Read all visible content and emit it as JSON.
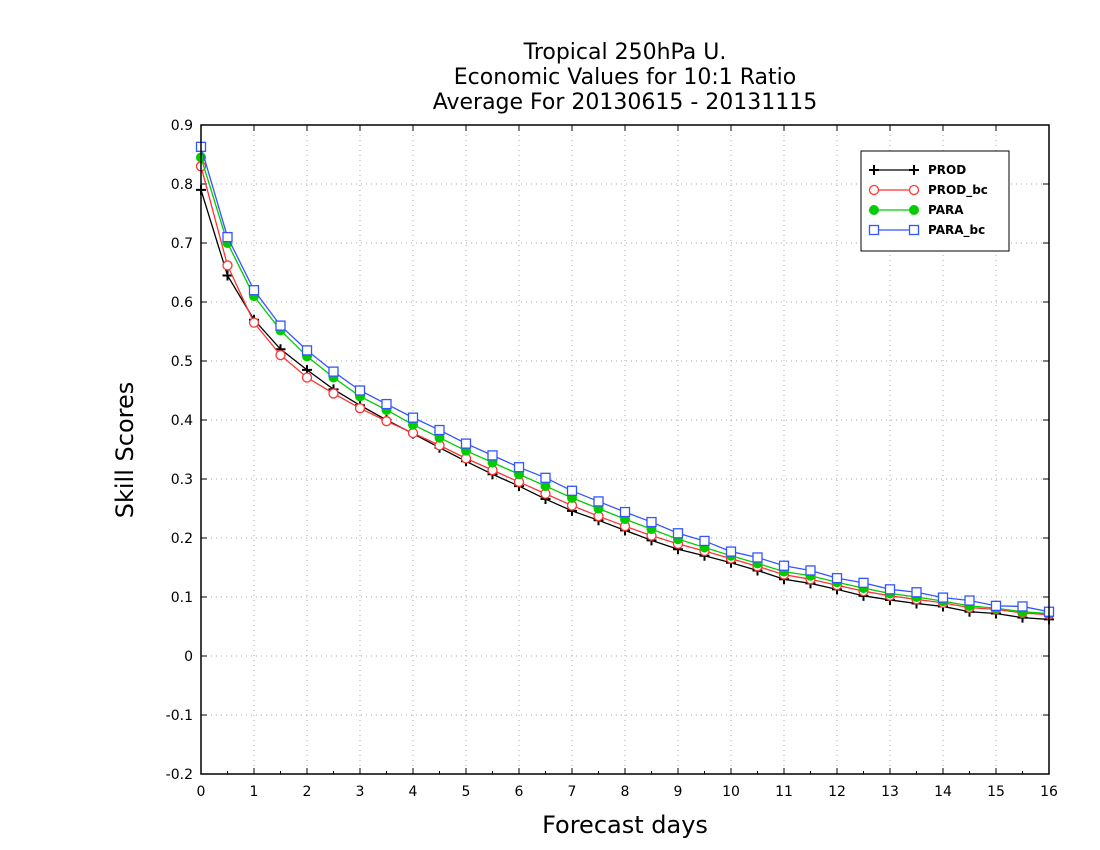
{
  "chart_data": {
    "type": "line",
    "title": [
      "Tropical 250hPa U.",
      "Economic Values for 10:1 Ratio",
      "Average For 20130615 - 20131115"
    ],
    "xlabel": "Forecast days",
    "ylabel": "Skill Scores",
    "xlim": [
      0,
      16
    ],
    "ylim": [
      -0.2,
      0.9
    ],
    "xticks": [
      "0",
      "1",
      "2",
      "3",
      "4",
      "5",
      "6",
      "7",
      "8",
      "9",
      "10",
      "11",
      "12",
      "13",
      "14",
      "15",
      "16"
    ],
    "yticks": [
      "-0.2",
      "-0.1",
      "0",
      "0.1",
      "0.2",
      "0.3",
      "0.4",
      "0.5",
      "0.6",
      "0.7",
      "0.8",
      "0.9"
    ],
    "grid": true,
    "legend_position": "top-right",
    "x": [
      0,
      0.5,
      1,
      1.5,
      2,
      2.5,
      3,
      3.5,
      4,
      4.5,
      5,
      5.5,
      6,
      6.5,
      7,
      7.5,
      8,
      8.5,
      9,
      9.5,
      10,
      10.5,
      11,
      11.5,
      12,
      12.5,
      13,
      13.5,
      14,
      14.5,
      15,
      15.5,
      16
    ],
    "series": [
      {
        "name": "PROD",
        "color": "#000000",
        "marker": "plus",
        "values": [
          0.79,
          0.645,
          0.57,
          0.52,
          0.485,
          0.452,
          0.425,
          0.4,
          0.377,
          0.353,
          0.33,
          0.308,
          0.288,
          0.266,
          0.246,
          0.23,
          0.213,
          0.196,
          0.181,
          0.17,
          0.158,
          0.145,
          0.13,
          0.123,
          0.113,
          0.102,
          0.095,
          0.089,
          0.084,
          0.075,
          0.072,
          0.065,
          0.062
        ]
      },
      {
        "name": "PROD_bc",
        "color": "#ff3333",
        "marker": "circle",
        "values": [
          0.83,
          0.662,
          0.565,
          0.51,
          0.472,
          0.445,
          0.42,
          0.398,
          0.378,
          0.357,
          0.335,
          0.315,
          0.295,
          0.275,
          0.255,
          0.237,
          0.22,
          0.204,
          0.19,
          0.178,
          0.165,
          0.152,
          0.138,
          0.13,
          0.12,
          0.11,
          0.102,
          0.096,
          0.09,
          0.082,
          0.079,
          0.073,
          0.07
        ]
      },
      {
        "name": "PARA",
        "color": "#00cc00",
        "marker": "dot",
        "values": [
          0.845,
          0.7,
          0.61,
          0.552,
          0.508,
          0.472,
          0.44,
          0.417,
          0.392,
          0.37,
          0.348,
          0.328,
          0.308,
          0.288,
          0.268,
          0.25,
          0.232,
          0.215,
          0.198,
          0.184,
          0.17,
          0.157,
          0.143,
          0.136,
          0.125,
          0.115,
          0.106,
          0.1,
          0.093,
          0.085,
          0.081,
          0.075,
          0.072
        ]
      },
      {
        "name": "PARA_bc",
        "color": "#3355ff",
        "marker": "square",
        "values": [
          0.863,
          0.71,
          0.62,
          0.56,
          0.518,
          0.482,
          0.45,
          0.427,
          0.404,
          0.383,
          0.36,
          0.34,
          0.32,
          0.302,
          0.28,
          0.262,
          0.244,
          0.227,
          0.208,
          0.195,
          0.177,
          0.167,
          0.153,
          0.145,
          0.132,
          0.124,
          0.113,
          0.108,
          0.099,
          0.094,
          0.085,
          0.084,
          0.075
        ]
      }
    ]
  }
}
